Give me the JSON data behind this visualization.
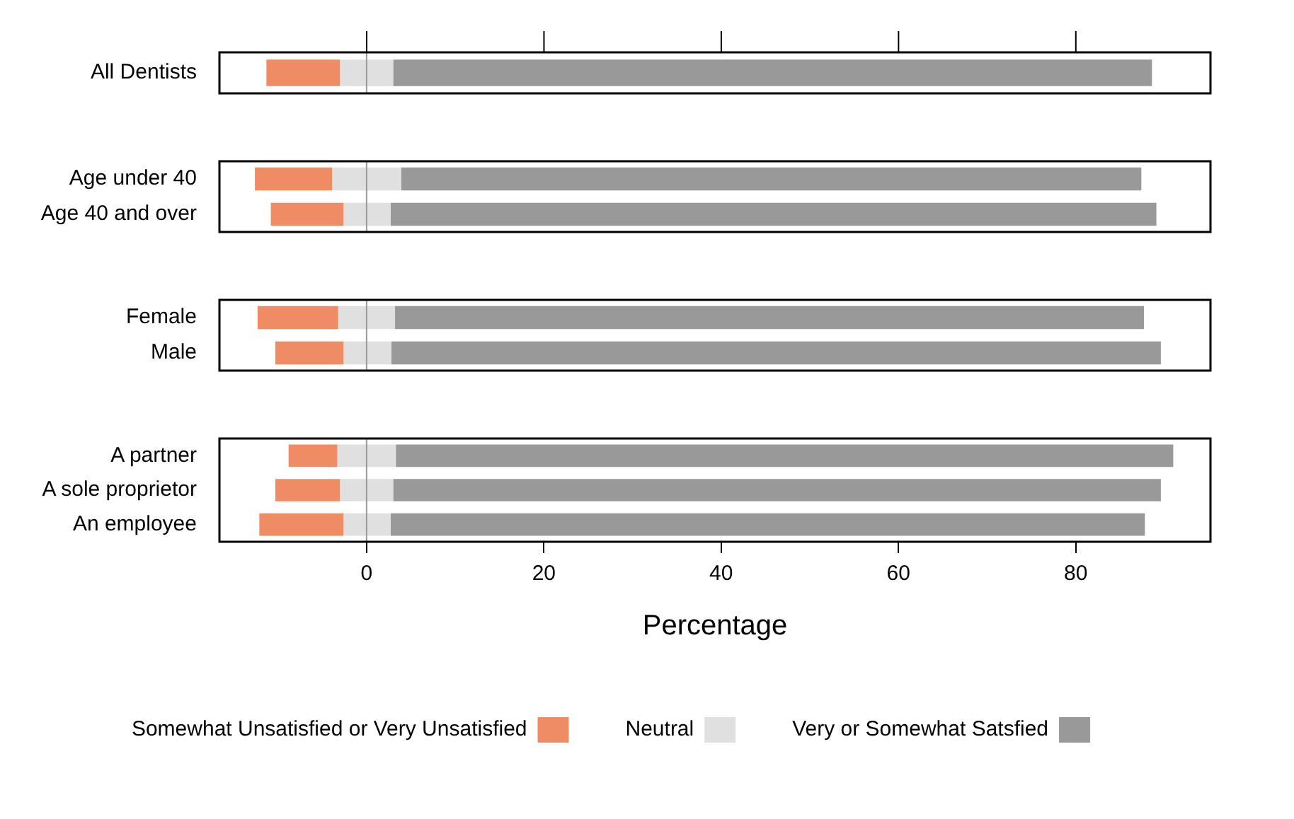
{
  "chart_data": [
    {
      "type": "bar",
      "orientation": "horizontal",
      "categories": [
        "All Dentists"
      ],
      "xlim": [
        -16.6,
        95.2
      ],
      "xticks": [
        0,
        20,
        40,
        60,
        80
      ],
      "tick_labels": "y",
      "ref_lines": [
        {
          "axis": "x",
          "value": 0,
          "color": "#999999"
        }
      ],
      "series": [
        {
          "color": "#f08c65",
          "base": [
            -11.3
          ],
          "values": [
            8.3
          ]
        },
        {
          "color": "#e0e0e0",
          "base": [
            -3.0
          ],
          "values": [
            6.0
          ]
        },
        {
          "color": "#999999",
          "base": [
            3.0
          ],
          "values": [
            85.6
          ]
        }
      ]
    },
    {
      "type": "bar",
      "orientation": "horizontal",
      "categories": [
        "Age under 40",
        "Age 40 and over"
      ],
      "xlim": [
        -16.6,
        95.2
      ],
      "xticks": [
        0,
        20,
        40,
        60,
        80
      ],
      "tick_labels": "y",
      "ref_lines": [
        {
          "axis": "x",
          "value": 0,
          "color": "#999999"
        }
      ],
      "series": [
        {
          "color": "#f08c65",
          "base": [
            -12.6,
            -10.8
          ],
          "values": [
            8.7,
            8.2
          ]
        },
        {
          "color": "#e0e0e0",
          "base": [
            -3.9,
            -2.6
          ],
          "values": [
            7.8,
            5.3
          ]
        },
        {
          "color": "#999999",
          "base": [
            3.9,
            2.7
          ],
          "values": [
            83.5,
            86.4
          ]
        }
      ]
    },
    {
      "type": "bar",
      "orientation": "horizontal",
      "categories": [
        "Female",
        "Male"
      ],
      "xlim": [
        -16.6,
        95.2
      ],
      "xticks": [
        0,
        20,
        40,
        60,
        80
      ],
      "tick_labels": "y",
      "ref_lines": [
        {
          "axis": "x",
          "value": 0,
          "color": "#999999"
        }
      ],
      "series": [
        {
          "color": "#f08c65",
          "base": [
            -12.3,
            -10.3
          ],
          "values": [
            9.1,
            7.7
          ]
        },
        {
          "color": "#e0e0e0",
          "base": [
            -3.2,
            -2.6
          ],
          "values": [
            6.4,
            5.4
          ]
        },
        {
          "color": "#999999",
          "base": [
            3.2,
            2.8
          ],
          "values": [
            84.5,
            86.8
          ]
        }
      ]
    },
    {
      "type": "bar",
      "orientation": "horizontal",
      "categories": [
        "A partner",
        "A sole proprietor",
        "An employee"
      ],
      "xlim": [
        -16.6,
        95.2
      ],
      "xticks": [
        0,
        20,
        40,
        60,
        80
      ],
      "xlabel": "Percentage",
      "legend": "bottom",
      "ref_lines": [
        {
          "axis": "x",
          "value": 0,
          "color": "#999999"
        }
      ],
      "series": [
        {
          "name": "Somewhat Unsatisfied or Very Unsatisfied",
          "color": "#f08c65",
          "base": [
            -8.8,
            -10.3,
            -12.1
          ],
          "values": [
            5.5,
            7.3,
            9.5
          ]
        },
        {
          "name": "Neutral",
          "color": "#e0e0e0",
          "base": [
            -3.3,
            -3.0,
            -2.6
          ],
          "values": [
            6.6,
            6.0,
            5.3
          ]
        },
        {
          "name": "Very or Somewhat Satsfied",
          "color": "#999999",
          "base": [
            3.3,
            3.0,
            2.7
          ],
          "values": [
            87.7,
            86.6,
            85.1
          ]
        }
      ]
    }
  ]
}
